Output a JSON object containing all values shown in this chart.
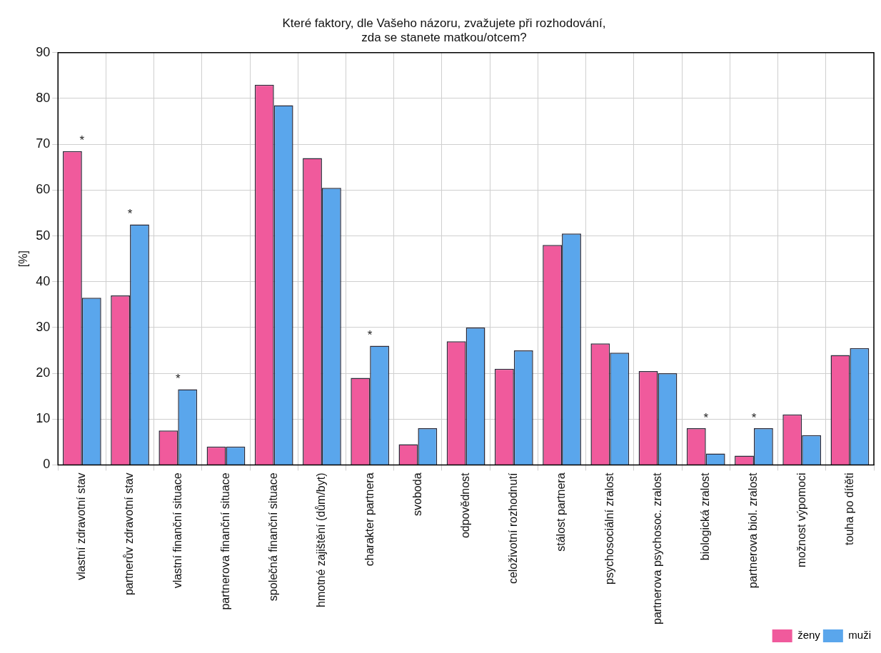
{
  "chart_data": {
    "type": "bar",
    "title": "Které faktory, dle Vašeho názoru, zvažujete při rozhodování,\nzda se stanete matkou/otcem?",
    "ylabel": "[%]",
    "categories": [
      "vlastní zdravotní stav",
      "partnerův zdravotní stav",
      "vlastní finanční situace",
      "partnerova finanční situace",
      "společná finanční situace",
      "hmotné zajištění (dům/byt)",
      "charakter partnera",
      "svoboda",
      "odpovědnost",
      "celoživotní rozhodnutí",
      "stálost partnera",
      "psychosociální zralost",
      "partnerova psychosoc. zralost",
      "biologická zralost",
      "partnerova biol. zralost",
      "možnost výpomoci",
      "touha po dítěti"
    ],
    "series": [
      {
        "name": "ženy",
        "color": "#f05a9c",
        "values": [
          68.5,
          37,
          7.5,
          4,
          83,
          67,
          19,
          4.5,
          27,
          21,
          48,
          26.5,
          20.5,
          8,
          2,
          11,
          24
        ]
      },
      {
        "name": "muži",
        "color": "#5aa6ec",
        "values": [
          36.5,
          52.5,
          16.5,
          4,
          78.5,
          60.5,
          26,
          8,
          30,
          25,
          50.5,
          24.5,
          20,
          2.5,
          8,
          6.5,
          25.5
        ]
      }
    ],
    "ylim": [
      0,
      90
    ],
    "yticks": [
      0,
      10,
      20,
      30,
      40,
      50,
      60,
      70,
      80,
      90
    ],
    "grid": true,
    "legend": "bottom right",
    "annotations": [
      {
        "text": "*",
        "x": "vlastní zdravotní stav",
        "y": 68.5
      },
      {
        "text": "*",
        "x": "partnerův zdravotní stav",
        "y": 52.5
      },
      {
        "text": "*",
        "x": "vlastní finanční situace",
        "y": 16.5
      },
      {
        "text": "*",
        "x": "charakter partnera",
        "y": 26
      },
      {
        "text": "*",
        "x": "biologická zralost",
        "y": 8
      },
      {
        "text": "*",
        "x": "partnerova biol. zralost",
        "y": 8
      }
    ]
  }
}
